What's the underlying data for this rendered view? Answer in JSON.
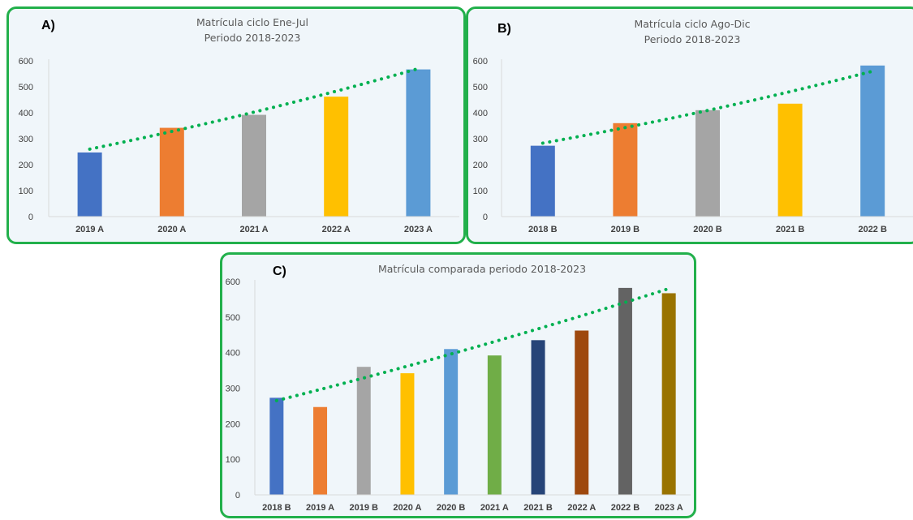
{
  "panels": [
    {
      "id": "panel-a",
      "letter": "A)",
      "title_lines": [
        "Matrícula ciclo Ene-Jul",
        "Periodo 2018-2023"
      ],
      "chart_data": {
        "type": "bar",
        "title": "Matrícula ciclo Ene-Jul Periodo 2018-2023",
        "categories": [
          "2019 A",
          "2020 A",
          "2021 A",
          "2022 A",
          "2023 A"
        ],
        "values": [
          247,
          342,
          392,
          462,
          567
        ],
        "colors": [
          "#4472c4",
          "#ed7d31",
          "#a5a5a5",
          "#ffc000",
          "#5b9bd5"
        ],
        "ylim": [
          0,
          600
        ],
        "yticks": [
          0,
          100,
          200,
          300,
          400,
          500,
          600
        ],
        "trendline": {
          "type": "polynomial",
          "color": "#00b050",
          "style": "dotted",
          "start": 260,
          "end": 570
        },
        "grid": false,
        "legend": "none"
      }
    },
    {
      "id": "panel-b",
      "letter": "B)",
      "title_lines": [
        "Matrícula ciclo Ago-Dic",
        "Periodo 2018-2023"
      ],
      "chart_data": {
        "type": "bar",
        "title": "Matrícula ciclo Ago-Dic Periodo 2018-2023",
        "categories": [
          "2018 B",
          "2019 B",
          "2020 B",
          "2021 B",
          "2022 B"
        ],
        "values": [
          273,
          360,
          410,
          435,
          582
        ],
        "colors": [
          "#4472c4",
          "#ed7d31",
          "#a5a5a5",
          "#ffc000",
          "#5b9bd5"
        ],
        "ylim": [
          0,
          600
        ],
        "yticks": [
          0,
          100,
          200,
          300,
          400,
          500,
          600
        ],
        "trendline": {
          "type": "polynomial",
          "color": "#00b050",
          "style": "dotted",
          "start": 283,
          "end": 560
        },
        "grid": false,
        "legend": "none"
      }
    },
    {
      "id": "panel-c",
      "letter": "C)",
      "title_lines": [
        "Matrícula comparada periodo 2018-2023"
      ],
      "chart_data": {
        "type": "bar",
        "title": "Matrícula comparada periodo 2018-2023",
        "categories": [
          "2018 B",
          "2019 A",
          "2019 B",
          "2020 A",
          "2020 B",
          "2021 A",
          "2021 B",
          "2022 A",
          "2022 B",
          "2023 A"
        ],
        "values": [
          273,
          247,
          360,
          342,
          410,
          392,
          435,
          462,
          582,
          567
        ],
        "colors": [
          "#4472c4",
          "#ed7d31",
          "#a5a5a5",
          "#ffc000",
          "#5b9bd5",
          "#70ad47",
          "#264478",
          "#9e480e",
          "#636363",
          "#997300"
        ],
        "ylim": [
          0,
          600
        ],
        "yticks": [
          0,
          100,
          200,
          300,
          400,
          500,
          600
        ],
        "trendline": {
          "type": "polynomial",
          "color": "#00b050",
          "style": "dotted",
          "start": 265,
          "end": 580
        },
        "grid": false,
        "legend": "none"
      }
    }
  ]
}
